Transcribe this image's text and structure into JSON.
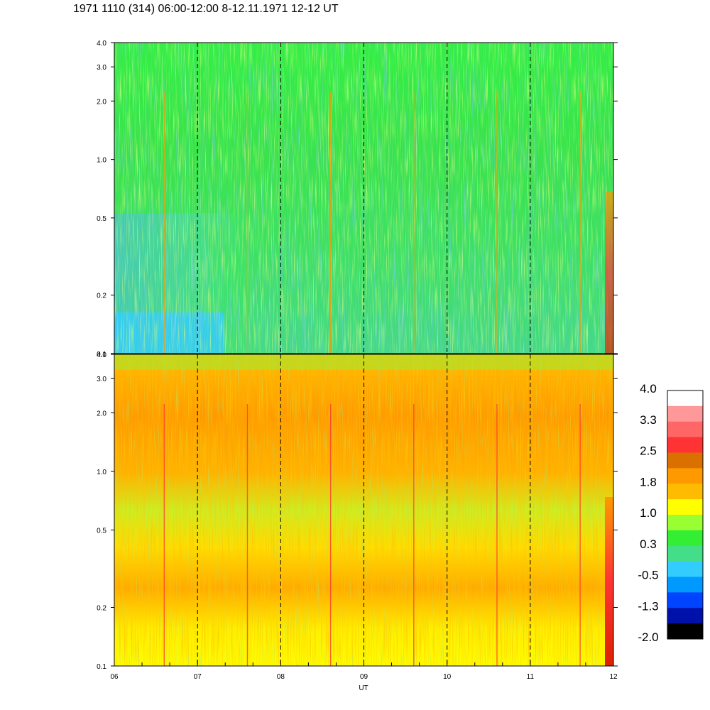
{
  "title": "1971 1110 (314) 06:00-12:00 8-12.11.1971  12-12 UT",
  "chart_data": [
    {
      "type": "heatmap",
      "panel": "upper",
      "x_range": [
        6,
        12
      ],
      "y_scale": "log",
      "y_range": [
        0.1,
        4.0
      ],
      "y_ticks": [
        "0.1",
        "0.2",
        "0.5",
        "1.0",
        "2.0",
        "3.0",
        "4.0"
      ],
      "dominant_levels": [
        "0.3",
        "-0.5",
        "1.0"
      ],
      "vertical_dashed_lines_at": [
        "07",
        "08",
        "09",
        "10",
        "11"
      ]
    },
    {
      "type": "heatmap",
      "panel": "lower",
      "x_range": [
        6,
        12
      ],
      "y_scale": "log",
      "y_range": [
        0.1,
        4.0
      ],
      "y_ticks": [
        "0.1",
        "0.2",
        "0.5",
        "1.0",
        "2.0",
        "3.0",
        "4.0"
      ],
      "x_ticks": [
        "06",
        "07",
        "08",
        "09",
        "10",
        "11",
        "12"
      ],
      "xlabel": "UT",
      "dominant_levels": [
        "1.0",
        "1.8",
        "0.3"
      ],
      "vertical_dashed_lines_at": [
        "07",
        "08",
        "09",
        "10",
        "11"
      ]
    }
  ],
  "colorbar": {
    "labels": [
      "4.0",
      "3.3",
      "2.5",
      "1.8",
      "1.0",
      "0.3",
      "-0.5",
      "-1.3",
      "-2.0"
    ],
    "colors": [
      "#ffffff",
      "#ff9999",
      "#ff6666",
      "#ff3333",
      "#d97000",
      "#ff9900",
      "#ffbb00",
      "#ffff00",
      "#99ff33",
      "#33ee33",
      "#44dd88",
      "#33ccff",
      "#0099ff",
      "#0044ff",
      "#0011aa",
      "#000000"
    ]
  }
}
